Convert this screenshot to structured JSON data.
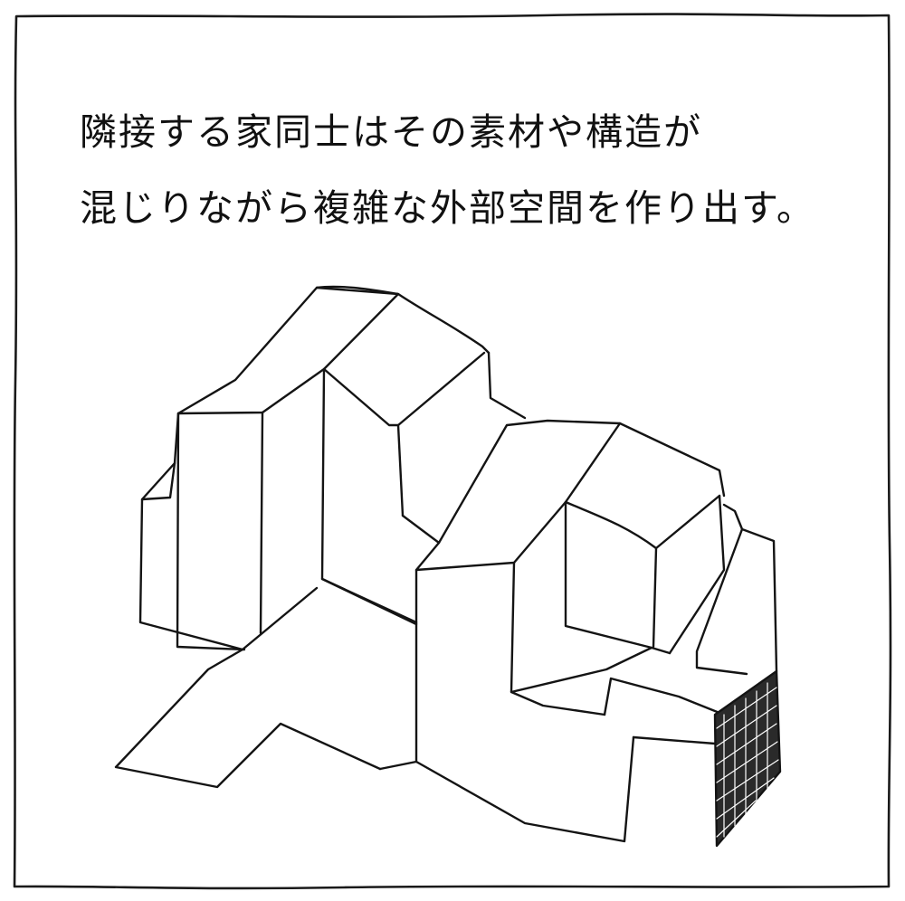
{
  "caption": {
    "line1": "隣接する家同士はその素材や構造が",
    "line2": "混じりながら複雑な外部空間を作り出す。"
  },
  "illustration": {
    "icon": "building-cluster-sketch-icon",
    "line_color": "#141414"
  }
}
